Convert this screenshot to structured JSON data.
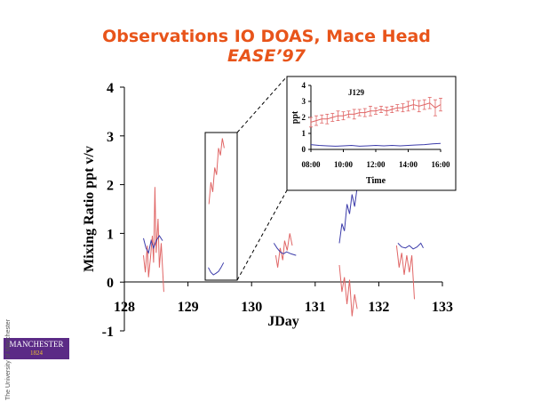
{
  "title": "Observations IO DOAS, Mace Head",
  "subtitle": "EASE’97",
  "logo": {
    "name": "MANCHESTER",
    "year": "1824",
    "tagline": "The University of Manchester"
  },
  "colors": {
    "title": "#e8541a",
    "io_red": "#e06666",
    "series_blue": "#3c3caa",
    "axis": "#000000"
  },
  "chart_data": [
    {
      "type": "line",
      "xlabel": "JDay",
      "ylabel": "Mixing Ratio ppt v/v",
      "xlim": [
        128,
        133
      ],
      "ylim": [
        -1,
        4
      ],
      "xticks": [
        "128",
        "129",
        "130",
        "131",
        "132",
        "133"
      ],
      "yticks": [
        "-1",
        "0",
        "1",
        "2",
        "3",
        "4"
      ],
      "grid": false,
      "series": [
        {
          "segments": [
            [
              [
                128.3,
                0.55
              ],
              [
                128.33,
                0.2
              ],
              [
                128.36,
                0.75
              ],
              [
                128.38,
                0.1
              ],
              [
                128.41,
                0.5
              ],
              [
                128.44,
                0.95
              ],
              [
                128.46,
                0.4
              ],
              [
                128.48,
                1.95
              ],
              [
                128.5,
                0.6
              ],
              [
                128.53,
                1.3
              ],
              [
                128.55,
                0.3
              ],
              [
                128.58,
                0.8
              ],
              [
                128.62,
                -0.2
              ]
            ],
            [
              [
                129.33,
                1.6
              ],
              [
                129.36,
                2.05
              ],
              [
                129.39,
                1.85
              ],
              [
                129.42,
                2.35
              ],
              [
                129.45,
                2.2
              ],
              [
                129.48,
                2.75
              ],
              [
                129.51,
                2.6
              ],
              [
                129.54,
                2.95
              ],
              [
                129.57,
                2.75
              ]
            ],
            [
              [
                130.38,
                0.55
              ],
              [
                130.41,
                0.3
              ],
              [
                130.45,
                0.7
              ],
              [
                130.49,
                0.45
              ],
              [
                130.52,
                0.85
              ],
              [
                130.56,
                0.65
              ],
              [
                130.6,
                1.0
              ],
              [
                130.64,
                0.75
              ]
            ],
            [
              [
                131.38,
                0.35
              ],
              [
                131.42,
                -0.2
              ],
              [
                131.46,
                0.1
              ],
              [
                131.5,
                -0.45
              ],
              [
                131.54,
                0.05
              ],
              [
                131.58,
                -0.7
              ],
              [
                131.62,
                -0.25
              ],
              [
                131.66,
                -0.55
              ]
            ],
            [
              [
                132.28,
                0.75
              ],
              [
                132.32,
                0.3
              ],
              [
                132.36,
                0.6
              ],
              [
                132.4,
                0.15
              ],
              [
                132.44,
                0.55
              ],
              [
                132.48,
                0.2
              ],
              [
                132.52,
                0.55
              ],
              [
                132.56,
                -0.35
              ]
            ]
          ]
        },
        {
          "segments": [
            [
              [
                128.3,
                0.9
              ],
              [
                128.34,
                0.7
              ],
              [
                128.38,
                0.6
              ],
              [
                128.42,
                0.85
              ],
              [
                128.46,
                0.7
              ],
              [
                128.5,
                0.85
              ],
              [
                128.55,
                0.95
              ],
              [
                128.6,
                0.85
              ]
            ],
            [
              [
                129.32,
                0.3
              ],
              [
                129.36,
                0.2
              ],
              [
                129.4,
                0.15
              ],
              [
                129.44,
                0.18
              ],
              [
                129.48,
                0.22
              ],
              [
                129.52,
                0.3
              ],
              [
                129.56,
                0.4
              ]
            ],
            [
              [
                130.35,
                0.8
              ],
              [
                130.4,
                0.7
              ],
              [
                130.45,
                0.62
              ],
              [
                130.5,
                0.58
              ],
              [
                130.55,
                0.62
              ],
              [
                130.62,
                0.58
              ],
              [
                130.7,
                0.55
              ]
            ],
            [
              [
                131.38,
                0.8
              ],
              [
                131.42,
                1.2
              ],
              [
                131.46,
                1.05
              ],
              [
                131.5,
                1.6
              ],
              [
                131.54,
                1.4
              ],
              [
                131.58,
                1.8
              ],
              [
                131.62,
                1.55
              ],
              [
                131.66,
                1.95
              ],
              [
                131.7,
                2.1
              ]
            ],
            [
              [
                132.3,
                0.8
              ],
              [
                132.36,
                0.72
              ],
              [
                132.42,
                0.7
              ],
              [
                132.48,
                0.75
              ],
              [
                132.54,
                0.68
              ],
              [
                132.6,
                0.72
              ],
              [
                132.66,
                0.8
              ],
              [
                132.7,
                0.7
              ]
            ]
          ]
        }
      ],
      "annotations": []
    },
    {
      "type": "line",
      "title": "J129",
      "xlabel": "Time",
      "ylabel": "ppt",
      "xlim": [
        8,
        16
      ],
      "ylim": [
        0,
        4
      ],
      "xticks": [
        "08:00",
        "10:00",
        "12:00",
        "14:00",
        "16:00"
      ],
      "yticks": [
        "0",
        "1",
        "2",
        "3",
        "4"
      ],
      "grid": false,
      "series": [
        {
          "error_bars": true,
          "x": [
            8.0,
            8.33,
            8.67,
            9.0,
            9.33,
            9.67,
            10.0,
            10.33,
            10.67,
            11.0,
            11.33,
            11.67,
            12.0,
            12.33,
            12.67,
            13.0,
            13.33,
            13.67,
            14.0,
            14.33,
            14.67,
            15.0,
            15.33,
            15.67,
            16.0
          ],
          "values": [
            1.7,
            1.8,
            1.9,
            1.9,
            2.0,
            2.1,
            2.1,
            2.2,
            2.2,
            2.3,
            2.3,
            2.4,
            2.4,
            2.5,
            2.4,
            2.5,
            2.6,
            2.6,
            2.7,
            2.8,
            2.7,
            2.8,
            2.9,
            2.6,
            2.8
          ],
          "errors": [
            0.3,
            0.3,
            0.25,
            0.3,
            0.25,
            0.3,
            0.25,
            0.2,
            0.3,
            0.2,
            0.25,
            0.3,
            0.2,
            0.2,
            0.25,
            0.2,
            0.2,
            0.25,
            0.3,
            0.3,
            0.35,
            0.3,
            0.35,
            0.5,
            0.4
          ]
        },
        {
          "x": [
            8.0,
            8.5,
            9.0,
            9.5,
            10.0,
            10.5,
            11.0,
            11.5,
            12.0,
            12.5,
            13.0,
            13.5,
            14.0,
            14.5,
            15.0,
            15.5,
            16.0
          ],
          "values": [
            0.3,
            0.25,
            0.22,
            0.2,
            0.22,
            0.25,
            0.2,
            0.22,
            0.25,
            0.22,
            0.25,
            0.22,
            0.25,
            0.28,
            0.3,
            0.35,
            0.38
          ]
        }
      ]
    }
  ]
}
